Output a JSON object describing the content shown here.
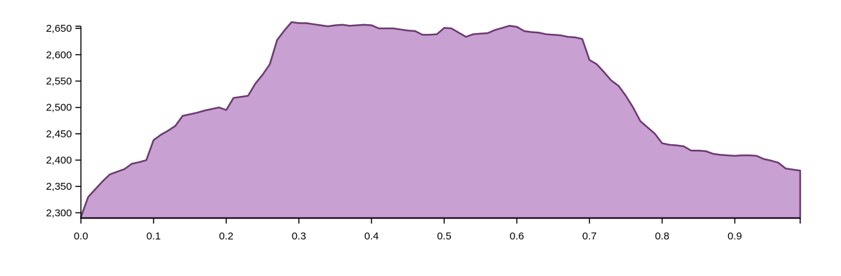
{
  "chart_data": {
    "type": "area",
    "title": "",
    "xlabel": "",
    "ylabel": "",
    "xlim": [
      0,
      0.99
    ],
    "ylim": [
      2290,
      2662
    ],
    "x_ticks": [
      0.0,
      0.1,
      0.2,
      0.3,
      0.4,
      0.5,
      0.6,
      0.7,
      0.8,
      0.9
    ],
    "x_tick_labels": [
      "0.0",
      "0.1",
      "0.2",
      "0.3",
      "0.4",
      "0.5",
      "0.6",
      "0.7",
      "0.8",
      "0.9"
    ],
    "y_ticks": [
      2300,
      2350,
      2400,
      2450,
      2500,
      2550,
      2600,
      2650
    ],
    "y_tick_labels": [
      "2,300",
      "2,350",
      "2,400",
      "2,450",
      "2,500",
      "2,550",
      "2,600",
      "2,650"
    ],
    "fill_color": "#c9a0d2",
    "line_color": "#6b3a70",
    "series": [
      {
        "x": [
          0.0,
          0.01,
          0.02,
          0.03,
          0.04,
          0.05,
          0.06,
          0.07,
          0.08,
          0.09,
          0.1,
          0.11,
          0.12,
          0.13,
          0.14,
          0.15,
          0.16,
          0.17,
          0.18,
          0.19,
          0.2,
          0.21,
          0.22,
          0.23,
          0.24,
          0.25,
          0.26,
          0.27,
          0.28,
          0.29,
          0.3,
          0.31,
          0.32,
          0.33,
          0.34,
          0.35,
          0.36,
          0.37,
          0.38,
          0.39,
          0.4,
          0.41,
          0.42,
          0.43,
          0.44,
          0.45,
          0.46,
          0.47,
          0.48,
          0.49,
          0.5,
          0.51,
          0.52,
          0.53,
          0.54,
          0.55,
          0.56,
          0.57,
          0.58,
          0.59,
          0.6,
          0.61,
          0.62,
          0.63,
          0.64,
          0.65,
          0.66,
          0.67,
          0.68,
          0.69,
          0.7,
          0.71,
          0.72,
          0.73,
          0.74,
          0.75,
          0.76,
          0.77,
          0.78,
          0.79,
          0.8,
          0.81,
          0.82,
          0.83,
          0.84,
          0.85,
          0.86,
          0.87,
          0.88,
          0.89,
          0.9,
          0.91,
          0.92,
          0.93,
          0.94,
          0.95,
          0.96,
          0.97,
          0.98,
          0.99
        ],
        "y": [
          2292,
          2330,
          2345,
          2360,
          2373,
          2378,
          2383,
          2393,
          2396,
          2400,
          2438,
          2448,
          2456,
          2465,
          2484,
          2487,
          2490,
          2494,
          2497,
          2500,
          2495,
          2518,
          2520,
          2522,
          2545,
          2562,
          2582,
          2628,
          2646,
          2662,
          2660,
          2660,
          2658,
          2656,
          2654,
          2656,
          2657,
          2655,
          2656,
          2657,
          2656,
          2650,
          2650,
          2650,
          2648,
          2646,
          2645,
          2638,
          2638,
          2639,
          2651,
          2650,
          2642,
          2634,
          2639,
          2640,
          2641,
          2647,
          2651,
          2655,
          2653,
          2645,
          2643,
          2642,
          2639,
          2638,
          2637,
          2634,
          2633,
          2630,
          2590,
          2582,
          2567,
          2551,
          2541,
          2522,
          2500,
          2474,
          2462,
          2450,
          2432,
          2429,
          2428,
          2426,
          2418,
          2418,
          2417,
          2412,
          2410,
          2409,
          2408,
          2409,
          2409,
          2408,
          2402,
          2399,
          2395,
          2384,
          2382,
          2380
        ]
      }
    ]
  }
}
